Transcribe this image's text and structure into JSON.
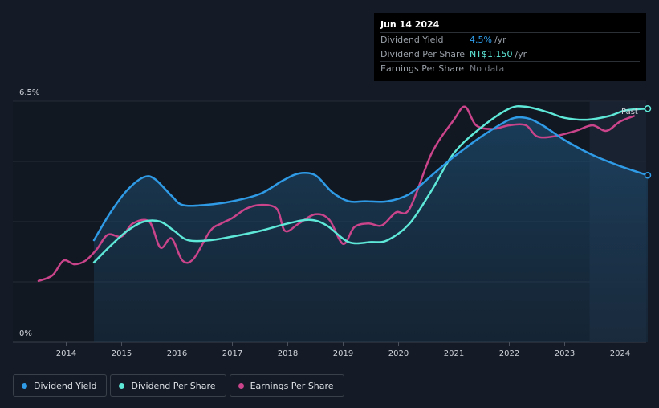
{
  "tooltip": {
    "date": "Jun 14 2024",
    "rows": [
      {
        "label": "Dividend Yield",
        "value": "4.5%",
        "unit": "/yr"
      },
      {
        "label": "Dividend Per Share",
        "value": "NT$1.150",
        "unit": "/yr"
      },
      {
        "label": "Earnings Per Share",
        "value": "No data",
        "unit": ""
      }
    ]
  },
  "past_label": "Past",
  "legend": [
    {
      "label": "Dividend Yield",
      "color": "#2f9ae6"
    },
    {
      "label": "Dividend Per Share",
      "color": "#5ee8d8"
    },
    {
      "label": "Earnings Per Share",
      "color": "#c9448a"
    }
  ],
  "chart_data": {
    "type": "line",
    "title": "",
    "xlabel": "",
    "ylabel": "",
    "y_tick_labels": [
      "6.5%",
      "0%"
    ],
    "ylim": [
      0,
      6.5
    ],
    "xlim": [
      2013.5,
      2024.5
    ],
    "x_ticks": [
      2014,
      2015,
      2016,
      2017,
      2018,
      2019,
      2020,
      2021,
      2022,
      2023,
      2024
    ],
    "x_tick_labels": [
      "2014",
      "2015",
      "2016",
      "2017",
      "2018",
      "2019",
      "2020",
      "2021",
      "2022",
      "2023",
      "2024"
    ],
    "past_region_start": 2023.45,
    "series": [
      {
        "name": "Dividend Yield",
        "color": "#2f9ae6",
        "filled": true,
        "x": [
          2014.5,
          2014.8,
          2015.1,
          2015.4,
          2015.6,
          2015.9,
          2016.1,
          2016.5,
          2017.0,
          2017.5,
          2017.9,
          2018.2,
          2018.5,
          2018.8,
          2019.1,
          2019.4,
          2019.8,
          2020.2,
          2020.6,
          2021.0,
          2021.5,
          2022.0,
          2022.3,
          2022.6,
          2023.0,
          2023.5,
          2024.0,
          2024.5
        ],
        "values": [
          2.75,
          3.5,
          4.1,
          4.45,
          4.4,
          3.95,
          3.7,
          3.7,
          3.8,
          4.0,
          4.35,
          4.55,
          4.5,
          4.05,
          3.8,
          3.8,
          3.8,
          4.0,
          4.5,
          5.0,
          5.55,
          6.0,
          6.05,
          5.85,
          5.45,
          5.05,
          4.75,
          4.5
        ]
      },
      {
        "name": "Dividend Per Share",
        "color": "#5ee8d8",
        "filled": false,
        "x": [
          2014.5,
          2014.8,
          2015.1,
          2015.4,
          2015.7,
          2015.95,
          2016.2,
          2016.6,
          2017.0,
          2017.5,
          2018.0,
          2018.4,
          2018.7,
          2019.1,
          2019.5,
          2019.8,
          2020.2,
          2020.6,
          2021.0,
          2021.5,
          2022.0,
          2022.3,
          2022.7,
          2023.0,
          2023.4,
          2023.8,
          2024.1,
          2024.5
        ],
        "values": [
          2.15,
          2.6,
          3.0,
          3.25,
          3.25,
          3.0,
          2.75,
          2.75,
          2.85,
          3.0,
          3.2,
          3.3,
          3.15,
          2.7,
          2.7,
          2.75,
          3.2,
          4.1,
          5.1,
          5.8,
          6.3,
          6.35,
          6.2,
          6.05,
          6.0,
          6.1,
          6.25,
          6.3
        ]
      },
      {
        "name": "Earnings Per Share",
        "color": "#c9448a",
        "filled": false,
        "x": [
          2013.5,
          2013.75,
          2013.95,
          2014.15,
          2014.35,
          2014.55,
          2014.75,
          2015.0,
          2015.2,
          2015.5,
          2015.7,
          2015.9,
          2016.1,
          2016.3,
          2016.6,
          2016.8,
          2017.0,
          2017.25,
          2017.5,
          2017.8,
          2017.95,
          2018.2,
          2018.5,
          2018.75,
          2019.0,
          2019.2,
          2019.45,
          2019.7,
          2019.95,
          2020.2,
          2020.6,
          2021.0,
          2021.2,
          2021.4,
          2021.7,
          2022.0,
          2022.3,
          2022.5,
          2022.8,
          2023.2,
          2023.5,
          2023.75,
          2024.0,
          2024.25
        ],
        "values": [
          1.65,
          1.8,
          2.2,
          2.1,
          2.2,
          2.5,
          2.9,
          2.85,
          3.2,
          3.25,
          2.55,
          2.8,
          2.2,
          2.25,
          3.0,
          3.2,
          3.35,
          3.6,
          3.7,
          3.6,
          3.0,
          3.2,
          3.45,
          3.3,
          2.65,
          3.1,
          3.2,
          3.15,
          3.5,
          3.6,
          5.1,
          6.0,
          6.35,
          5.85,
          5.75,
          5.85,
          5.85,
          5.55,
          5.55,
          5.7,
          5.85,
          5.7,
          5.95,
          6.1
        ]
      }
    ]
  }
}
